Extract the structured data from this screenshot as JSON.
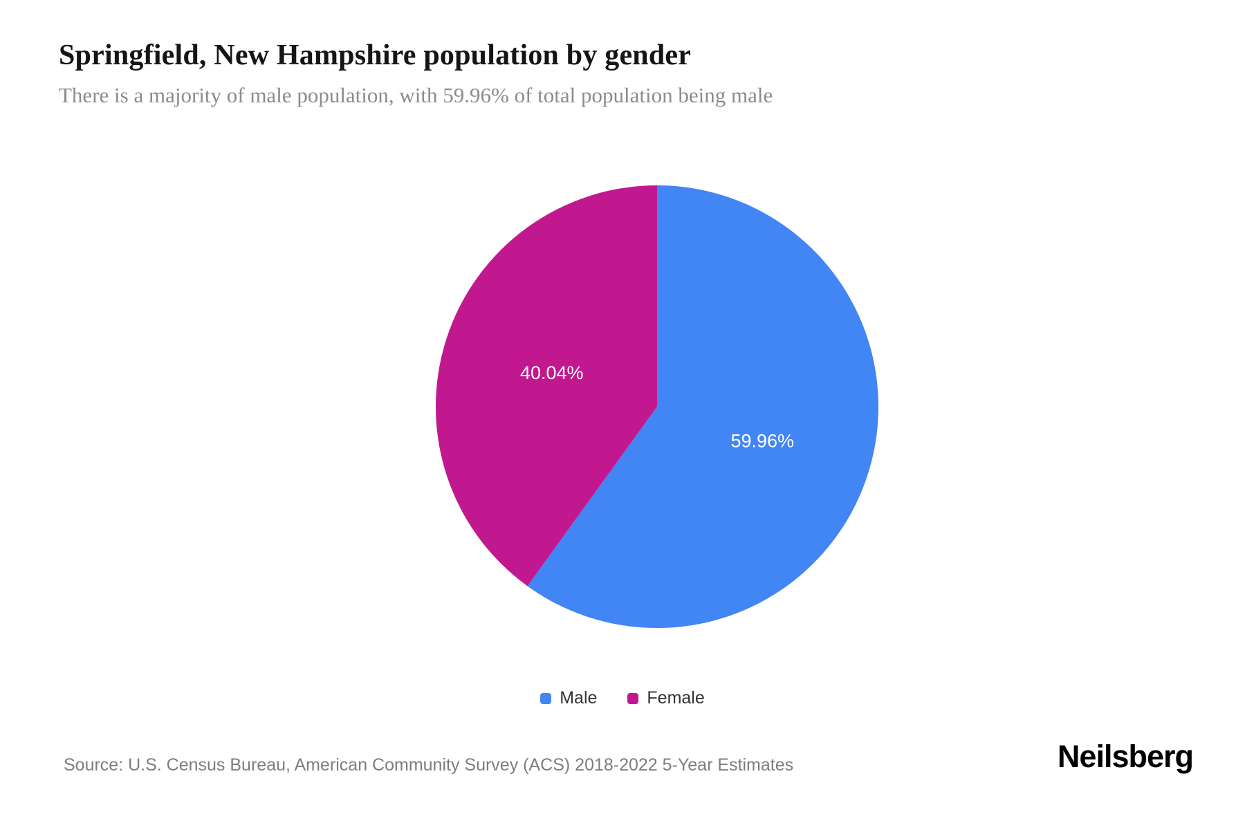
{
  "header": {
    "title": "Springfield, New Hampshire population by gender",
    "subtitle": "There is a majority of male population, with 59.96% of total population being male"
  },
  "chart_data": {
    "type": "pie",
    "title": "Springfield, New Hampshire population by gender",
    "subtitle": "There is a majority of male population, with 59.96% of total population being male",
    "slices": [
      {
        "label": "Male",
        "value": 59.96,
        "display": "59.96%",
        "color": "#4285f4"
      },
      {
        "label": "Female",
        "value": 40.04,
        "display": "40.04%",
        "color": "#c2188f"
      }
    ],
    "start_angle_deg": 0,
    "direction": "clockwise",
    "label_color": "#ffffff",
    "label_radius_ratio": 0.5,
    "legend_position": "bottom"
  },
  "footer": {
    "source": "Source: U.S. Census Bureau, American Community Survey (ACS) 2018-2022 5-Year Estimates",
    "brand": "Neilsberg"
  }
}
